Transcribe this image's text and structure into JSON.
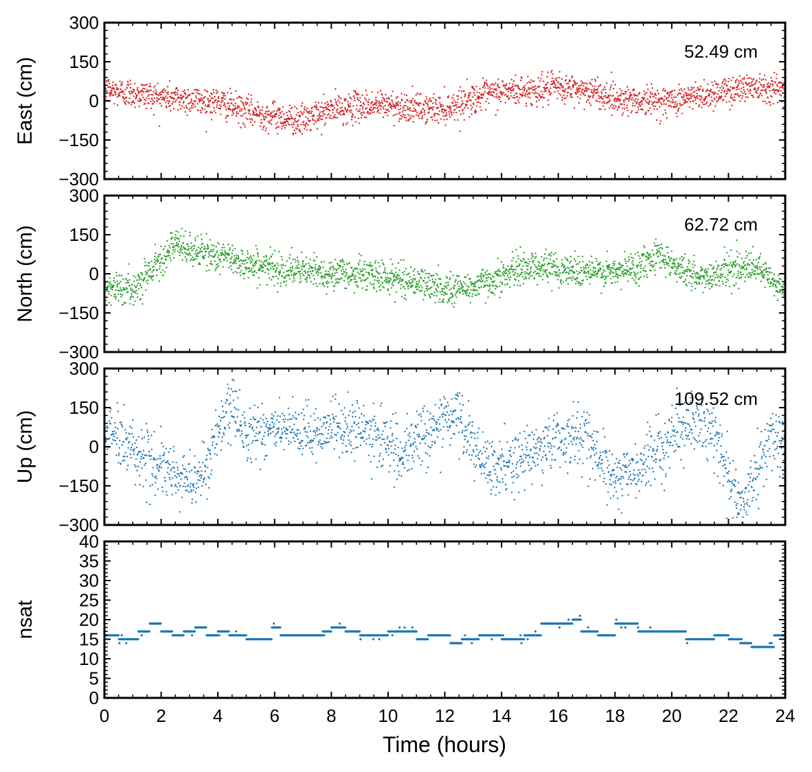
{
  "chart_data": [
    {
      "type": "scatter",
      "panel": "east",
      "ylabel": "East (cm)",
      "annotation": "52.49 cm",
      "ylim": [
        -300,
        300
      ],
      "yticks": [
        -300,
        -150,
        0,
        150,
        300
      ],
      "ytick_labels": [
        "−300",
        "−150",
        "0",
        "150",
        "300"
      ],
      "color": "#d62728",
      "series": [
        {
          "x": [
            0,
            1,
            2,
            3,
            4,
            5,
            6,
            7,
            8,
            9,
            10,
            11,
            12,
            13,
            14,
            15,
            16,
            17,
            18,
            19,
            20,
            21,
            22,
            23,
            24
          ],
          "y": [
            40,
            30,
            15,
            5,
            -5,
            -40,
            -60,
            -75,
            -35,
            -20,
            -15,
            -30,
            -30,
            10,
            35,
            40,
            50,
            40,
            10,
            0,
            0,
            20,
            40,
            60,
            40
          ]
        }
      ],
      "noise_sd": 28
    },
    {
      "type": "scatter",
      "panel": "north",
      "ylabel": "North (cm)",
      "annotation": "62.72 cm",
      "ylim": [
        -300,
        300
      ],
      "yticks": [
        -300,
        -150,
        0,
        150,
        300
      ],
      "ytick_labels": [
        "−300",
        "−150",
        "0",
        "150",
        "300"
      ],
      "color": "#2ca02c",
      "series": [
        {
          "x": [
            0,
            1,
            1.5,
            2,
            2.5,
            3,
            4,
            5,
            6,
            7,
            8,
            9,
            10,
            11,
            12,
            13,
            14,
            15,
            16,
            17,
            18,
            19,
            19.5,
            20,
            21,
            22,
            23,
            24
          ],
          "y": [
            -50,
            -60,
            0,
            60,
            110,
            90,
            70,
            40,
            20,
            10,
            0,
            0,
            -15,
            -30,
            -60,
            -50,
            -10,
            30,
            20,
            10,
            0,
            40,
            80,
            40,
            -20,
            20,
            20,
            -70
          ]
        }
      ],
      "noise_sd": 30
    },
    {
      "type": "scatter",
      "panel": "up",
      "ylabel": "Up (cm)",
      "annotation": "109.52 cm",
      "ylim": [
        -300,
        300
      ],
      "yticks": [
        -300,
        -150,
        0,
        150,
        300
      ],
      "ytick_labels": [
        "−300",
        "−150",
        "0",
        "150",
        "300"
      ],
      "color": "#1f77b4",
      "series": [
        {
          "x": [
            0,
            1,
            2,
            3,
            3.5,
            4,
            4.5,
            5,
            6,
            7,
            8,
            9,
            10,
            10.5,
            11,
            12,
            12.5,
            13,
            13.5,
            14,
            15,
            16,
            17,
            17.5,
            18,
            19,
            20,
            21,
            21.5,
            22,
            22.5,
            23,
            23.5,
            24
          ],
          "y": [
            70,
            0,
            -90,
            -130,
            -100,
            50,
            150,
            60,
            70,
            40,
            80,
            60,
            30,
            -60,
            30,
            100,
            120,
            0,
            -90,
            -80,
            -30,
            30,
            50,
            -60,
            -120,
            -80,
            50,
            100,
            50,
            -100,
            -250,
            -80,
            50,
            0
          ]
        }
      ],
      "noise_sd": 55
    },
    {
      "type": "scatter",
      "panel": "nsat",
      "ylabel": "nsat",
      "ylim": [
        0,
        40
      ],
      "yticks": [
        0,
        5,
        10,
        15,
        20,
        25,
        30,
        35,
        40
      ],
      "ytick_labels": [
        "0",
        "5",
        "10",
        "15",
        "20",
        "25",
        "30",
        "35",
        "40"
      ],
      "color": "#1f77b4",
      "series": [
        {
          "x": [
            0,
            0.5,
            1.2,
            1.6,
            2.0,
            2.4,
            2.8,
            3.2,
            3.6,
            4.0,
            4.4,
            5.0,
            5.9,
            6.2,
            7.2,
            7.7,
            8.0,
            8.5,
            9.0,
            9.6,
            10.0,
            11.0,
            11.4,
            12.2,
            12.6,
            13.2,
            14.0,
            14.8,
            15.4,
            16.5,
            16.8,
            17.4,
            18.0,
            18.8,
            19.5,
            20.5,
            21.5,
            22.0,
            22.4,
            22.8,
            23.6,
            24.0
          ],
          "y": [
            16,
            15,
            17,
            19,
            17,
            16,
            17,
            18,
            16,
            17,
            16,
            15,
            18,
            16,
            16,
            17,
            18,
            17,
            16,
            16,
            17,
            15,
            16,
            14,
            15,
            16,
            15,
            16,
            19,
            20,
            17,
            16,
            19,
            17,
            17,
            15,
            16,
            15,
            14,
            13,
            16,
            17
          ]
        }
      ]
    }
  ],
  "shared_x": {
    "xlabel": "Time (hours)",
    "xlim": [
      0,
      24
    ],
    "xticks": [
      0,
      2,
      4,
      6,
      8,
      10,
      12,
      14,
      16,
      18,
      20,
      22,
      24
    ]
  }
}
